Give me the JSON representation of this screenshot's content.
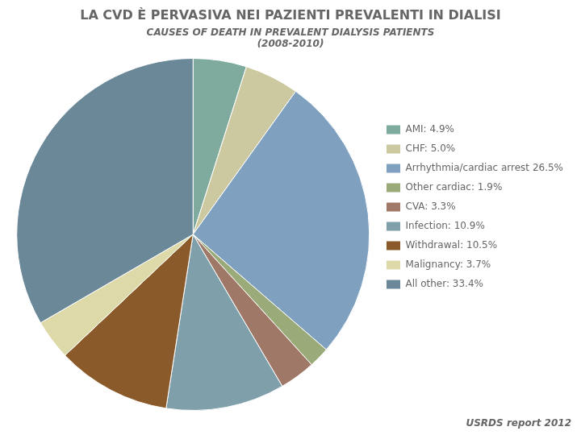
{
  "chart_data": {
    "type": "pie",
    "title": "LA CVD È PERVASIVA NEI PAZIENTI PREVALENTI IN DIALISI",
    "subtitle": "CAUSES OF DEATH IN PREVALENT DIALYSIS PATIENTS\n(2008-2010)",
    "annotations": [
      "USRDS report 2012"
    ],
    "categories": [
      "AMI: 4.9%",
      "CHF: 5.0%",
      "Arrhythmia/cardiac arrest 26.5%",
      "Other cardiac: 1.9%",
      "CVA: 3.3%",
      "Infection: 10.9%",
      "Withdrawal: 10.5%",
      "Malignancy: 3.7%",
      "All other: 33.4%"
    ],
    "values": [
      4.9,
      5.0,
      26.5,
      1.9,
      3.3,
      10.9,
      10.5,
      3.7,
      33.4
    ],
    "colors": [
      "#7faa9e",
      "#ccc9a1",
      "#7fa0bf",
      "#9aaa78",
      "#a07868",
      "#7fa0aa",
      "#8b5a2b",
      "#ddd9a8",
      "#6a8898"
    ],
    "legend": "right"
  }
}
